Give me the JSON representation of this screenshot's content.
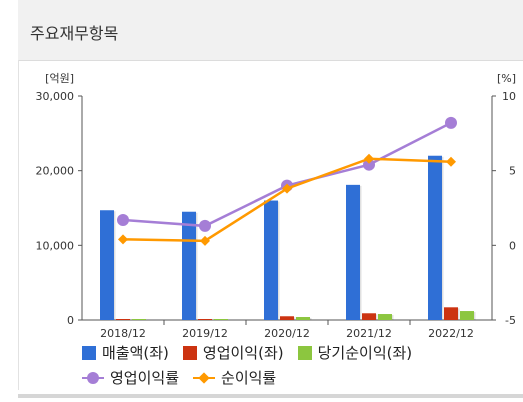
{
  "header": {
    "title": "주요재무항목"
  },
  "chart_data": {
    "type": "bar",
    "categories": [
      "2018/12",
      "2019/12",
      "2020/12",
      "2021/12",
      "2022/12"
    ],
    "left_axis": {
      "unit": "[억원]",
      "ylim": [
        0,
        30000
      ],
      "ticks": [
        "0",
        "10,000",
        "20,000",
        "30,000"
      ]
    },
    "right_axis": {
      "unit": "[%]",
      "ylim": [
        -5,
        10
      ],
      "ticks": [
        "-5",
        "0",
        "5",
        "10"
      ]
    },
    "series": [
      {
        "name": "매출액(좌)",
        "axis": "left",
        "kind": "bar",
        "color": "#2f6fd6",
        "values": [
          14700,
          14500,
          16000,
          18100,
          22000
        ]
      },
      {
        "name": "영업이익(좌)",
        "axis": "left",
        "kind": "bar",
        "color": "#cc3311",
        "values": [
          100,
          100,
          500,
          900,
          1700
        ]
      },
      {
        "name": "당기순이익(좌)",
        "axis": "left",
        "kind": "bar",
        "color": "#8cc63f",
        "values": [
          100,
          100,
          400,
          800,
          1200
        ]
      },
      {
        "name": "영업이익률",
        "axis": "right",
        "kind": "line",
        "marker": "circle",
        "color": "#a57ed6",
        "values": [
          1.7,
          1.3,
          4.0,
          5.4,
          8.2
        ]
      },
      {
        "name": "순이익률",
        "axis": "right",
        "kind": "line",
        "marker": "diamond",
        "color": "#ff9900",
        "values": [
          0.4,
          0.3,
          3.8,
          5.8,
          5.6
        ]
      }
    ],
    "legend_position": "bottom",
    "grid": false
  }
}
